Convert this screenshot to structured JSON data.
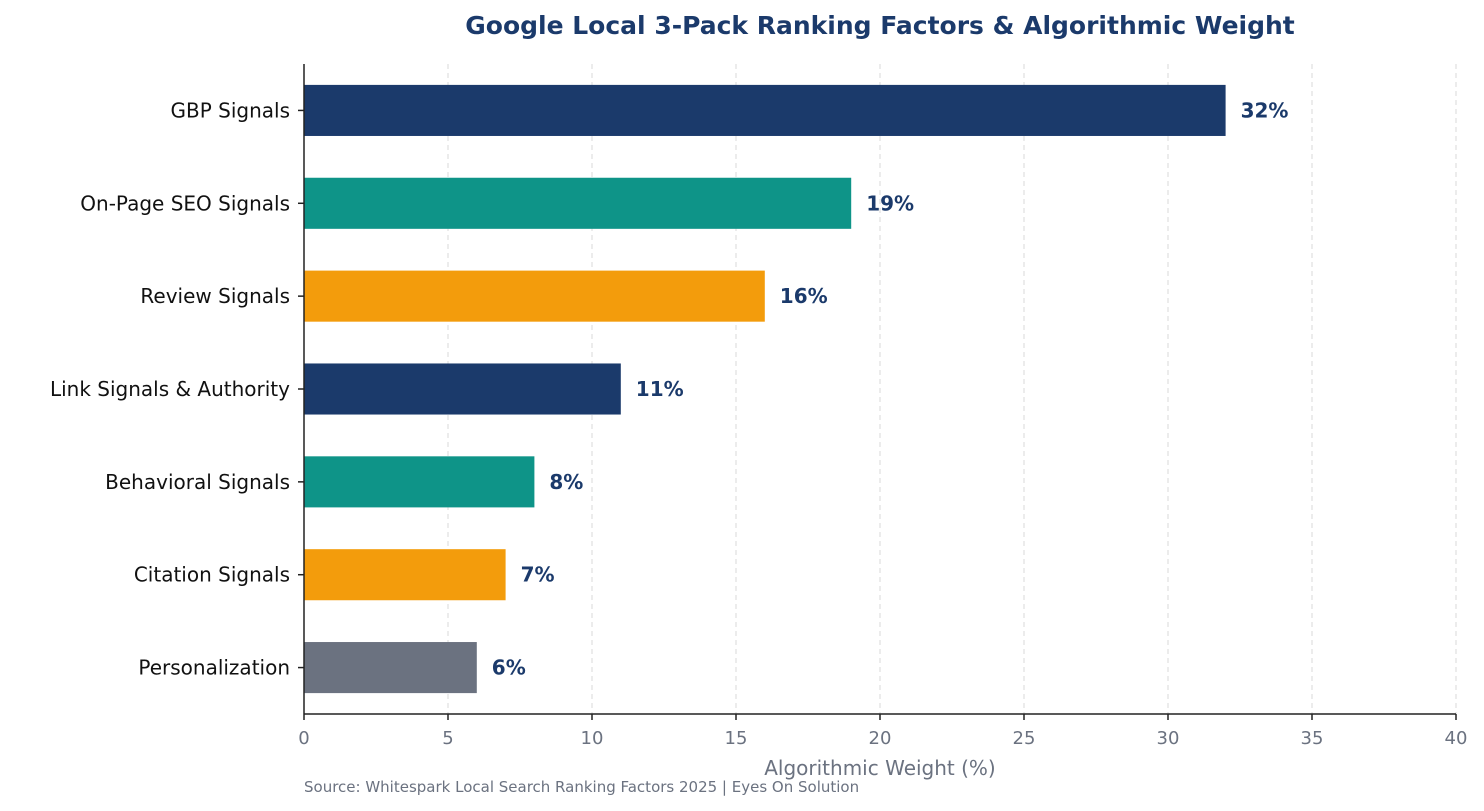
{
  "chart_data": {
    "type": "bar",
    "orientation": "horizontal",
    "title": "Google Local 3-Pack Ranking Factors & Algorithmic Weight",
    "xlabel": "Algorithmic Weight (%)",
    "ylabel": "",
    "xlim": [
      0,
      40
    ],
    "x_ticks": [
      0,
      5,
      10,
      15,
      20,
      25,
      30,
      35,
      40
    ],
    "grid": "vertical dashed",
    "categories": [
      "GBP Signals",
      "On-Page SEO Signals",
      "Review Signals",
      "Link Signals & Authority",
      "Behavioral Signals",
      "Citation Signals",
      "Personalization"
    ],
    "values": [
      32,
      19,
      16,
      11,
      8,
      7,
      6
    ],
    "value_labels": [
      "32%",
      "19%",
      "16%",
      "11%",
      "8%",
      "7%",
      "6%"
    ],
    "bar_colors": [
      "#1b3a6b",
      "#0e9488",
      "#f39c0c",
      "#1b3a6b",
      "#0e9488",
      "#f39c0c",
      "#6b7280"
    ],
    "source": "Source: Whitespark Local Search Ranking Factors 2025 | Eyes On Solution"
  }
}
